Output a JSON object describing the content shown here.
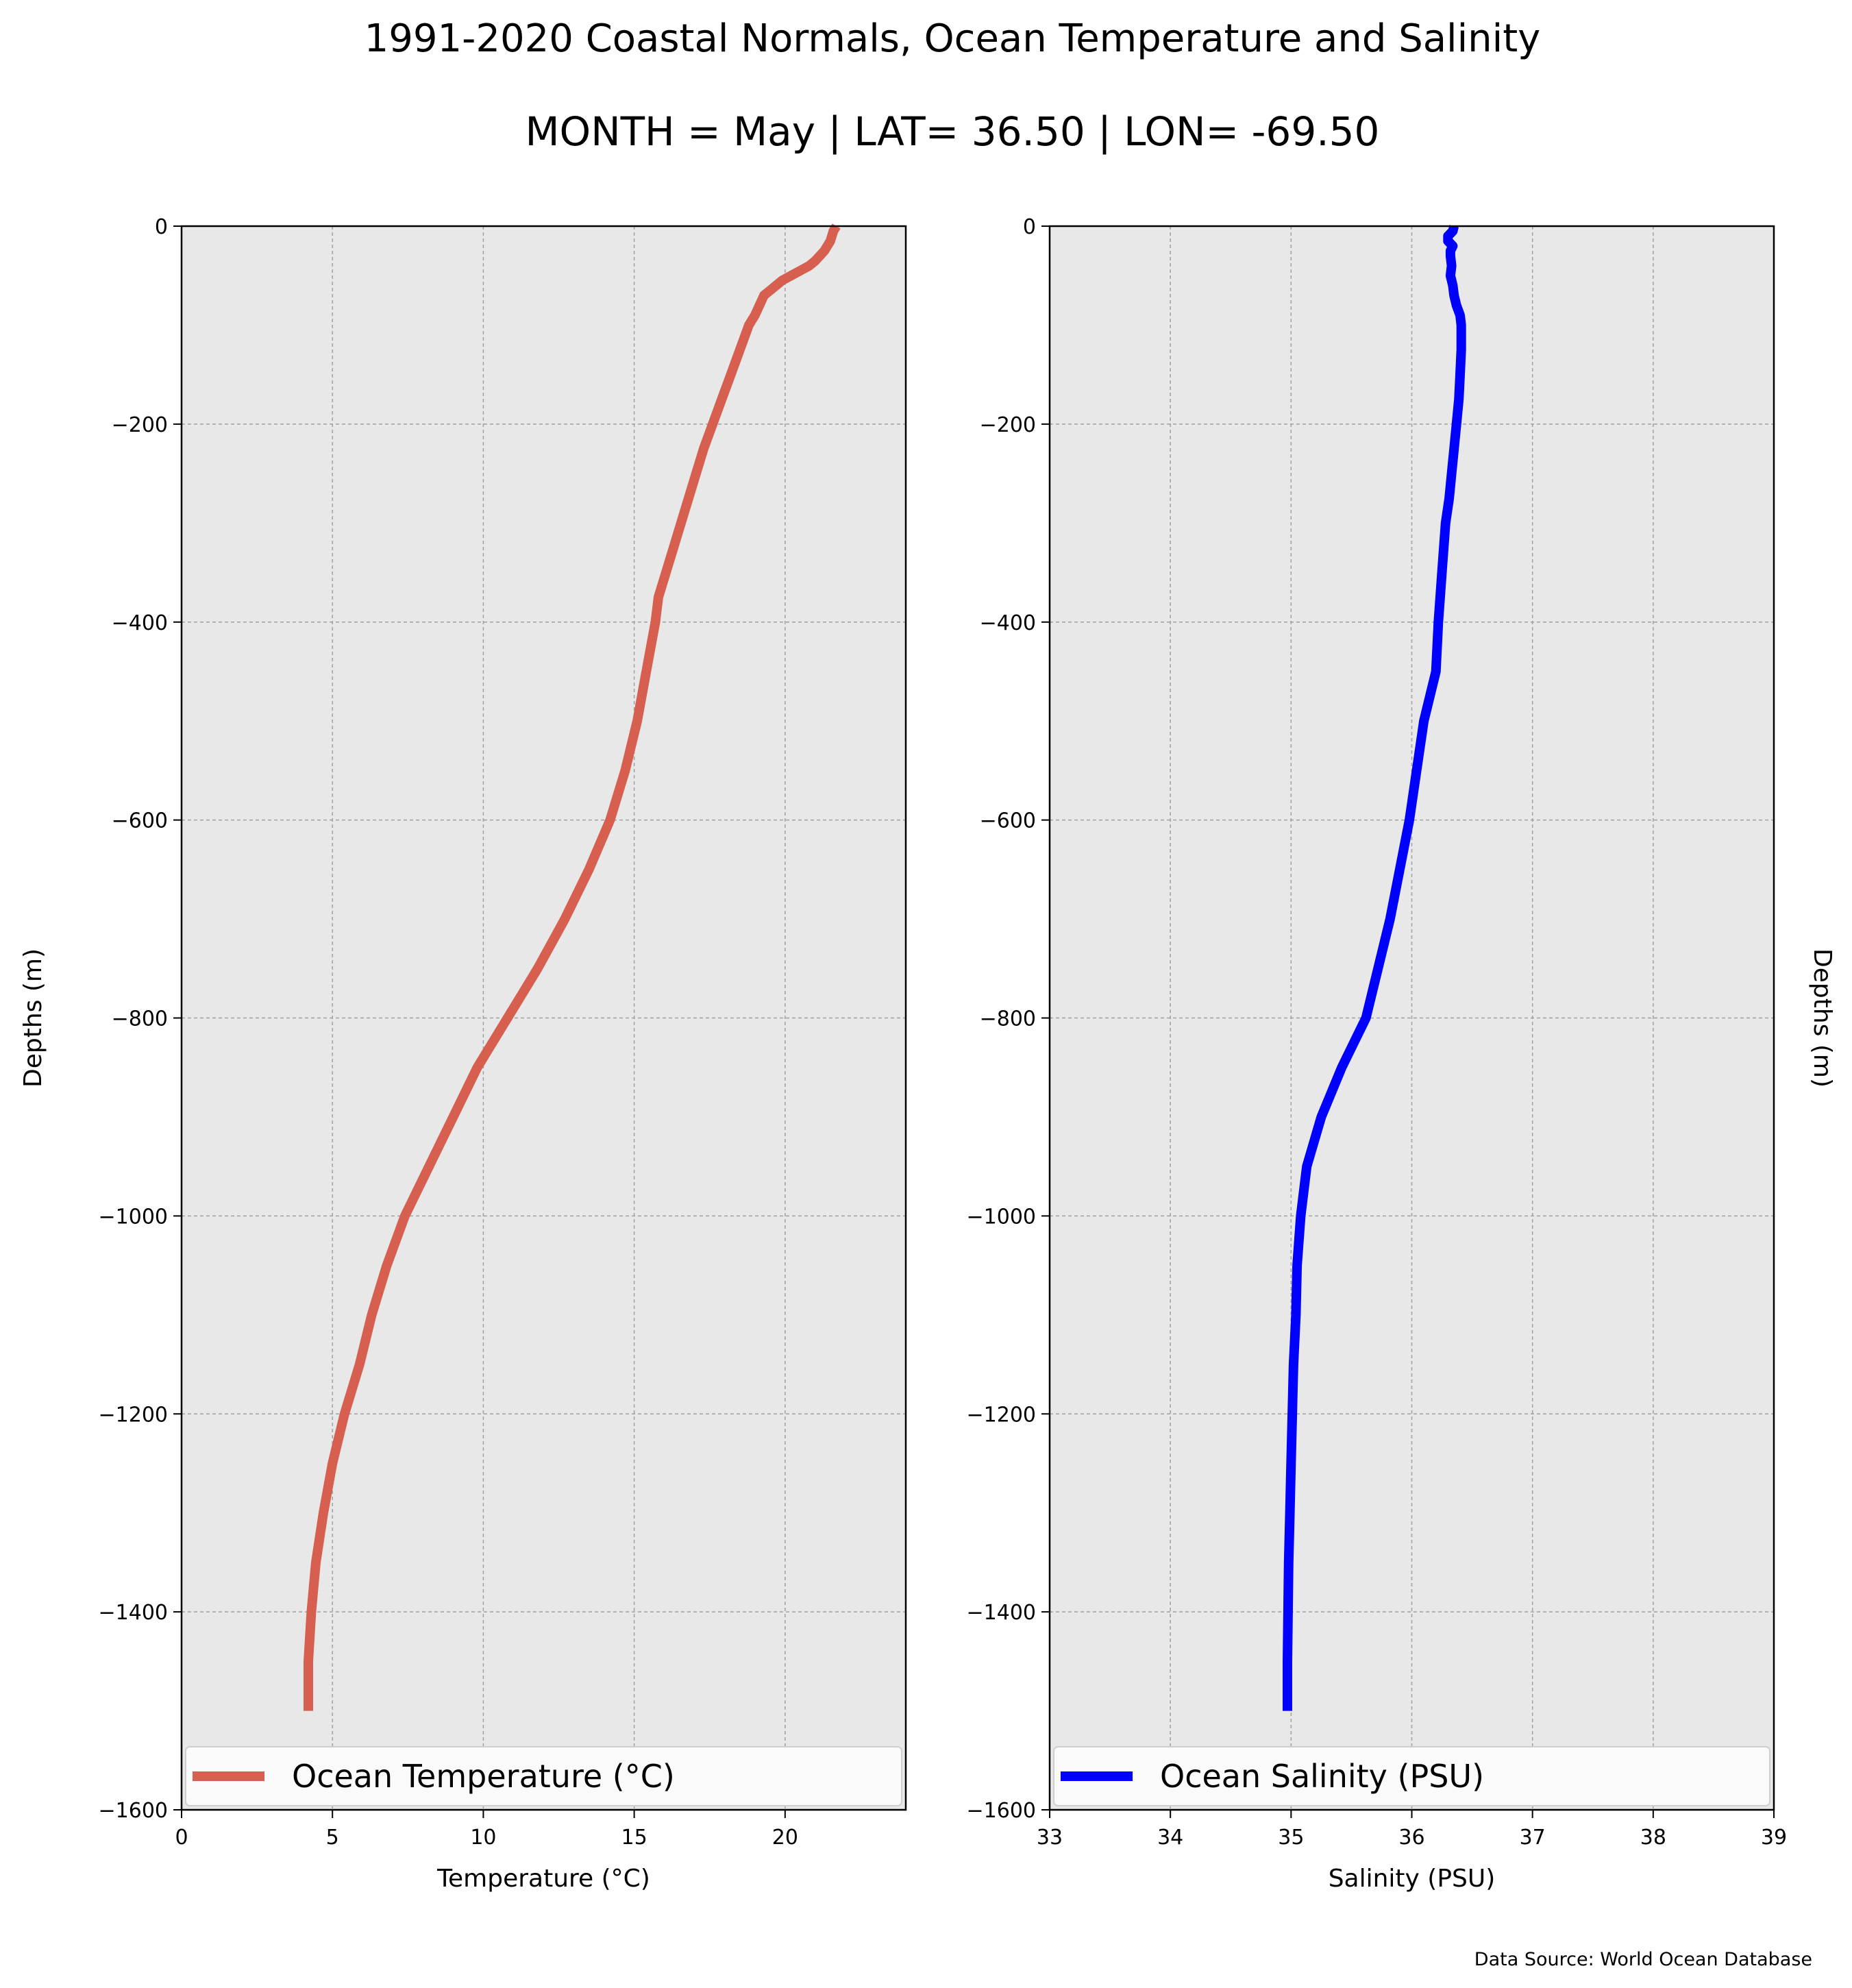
{
  "figure": {
    "title_line1": "1991-2020 Coastal Normals, Ocean Temperature and Salinity",
    "title_line2": "MONTH = May | LAT= 36.50 | LON= -69.50",
    "source": "Data Source: World Ocean Database",
    "background": "#ffffff",
    "panel_background": "#e8e8e8"
  },
  "chart_data": [
    {
      "type": "line",
      "xlabel": "Temperature ($^\\circ$C)",
      "xlabel_display": "Temperature (°C)",
      "ylabel": "Depths (m)",
      "xlim": [
        0,
        24
      ],
      "ylim": [
        -1600,
        0
      ],
      "xticks": [
        0,
        5,
        10,
        15,
        20
      ],
      "xtick_labels": [
        "0",
        "5",
        "10",
        "15",
        "20"
      ],
      "yticks": [
        0,
        -200,
        -400,
        -600,
        -800,
        -1000,
        -1200,
        -1400,
        -1600
      ],
      "ytick_labels": [
        "0",
        "−200",
        "−400",
        "−600",
        "−800",
        "−1000",
        "−1200",
        "−1400",
        "−1600"
      ],
      "grid": true,
      "legend": "lower-center",
      "series": [
        {
          "name": "Ocean Temperature (°C)",
          "color": "#d65f4f",
          "x": [
            21.7,
            21.6,
            21.55,
            21.5,
            21.3,
            21.0,
            20.8,
            20.5,
            20.2,
            19.9,
            19.7,
            19.5,
            19.3,
            19.15,
            19.0,
            18.8,
            18.5,
            18.2,
            17.9,
            17.6,
            17.3,
            17.05,
            16.8,
            16.55,
            16.3,
            16.05,
            15.8,
            15.7,
            15.4,
            15.1,
            14.7,
            14.2,
            13.5,
            12.7,
            11.8,
            10.8,
            9.8,
            9.0,
            8.2,
            7.4,
            6.8,
            6.3,
            5.9,
            5.4,
            5.0,
            4.7,
            4.45,
            4.3,
            4.2,
            4.2
          ],
          "y": [
            0,
            -5,
            -10,
            -15,
            -25,
            -35,
            -40,
            -45,
            -50,
            -55,
            -60,
            -65,
            -70,
            -80,
            -90,
            -100,
            -125,
            -150,
            -175,
            -200,
            -225,
            -250,
            -275,
            -300,
            -325,
            -350,
            -375,
            -400,
            -450,
            -500,
            -550,
            -600,
            -650,
            -700,
            -750,
            -800,
            -850,
            -900,
            -950,
            -1000,
            -1050,
            -1100,
            -1150,
            -1200,
            -1250,
            -1300,
            -1350,
            -1400,
            -1450,
            -1500
          ]
        }
      ]
    },
    {
      "type": "line",
      "xlabel": "Salinity (PSU)",
      "ylabel": "Depths (m)",
      "xlim": [
        33,
        39
      ],
      "ylim": [
        -1600,
        0
      ],
      "xticks": [
        33,
        34,
        35,
        36,
        37,
        38,
        39
      ],
      "xtick_labels": [
        "33",
        "34",
        "35",
        "36",
        "37",
        "38",
        "39"
      ],
      "yticks": [
        0,
        -200,
        -400,
        -600,
        -800,
        -1000,
        -1200,
        -1400,
        -1600
      ],
      "ytick_labels": [
        "0",
        "−200",
        "−400",
        "−600",
        "−800",
        "−1000",
        "−1200",
        "−1400",
        "−1600"
      ],
      "grid": true,
      "legend": "lower-center",
      "series": [
        {
          "name": "Ocean Salinity (PSU)",
          "color": "#0000ff",
          "x": [
            36.35,
            36.34,
            36.3,
            36.3,
            36.34,
            36.32,
            36.32,
            36.33,
            36.32,
            36.34,
            36.35,
            36.37,
            36.4,
            36.41,
            36.41,
            36.4,
            36.39,
            36.37,
            36.35,
            36.33,
            36.31,
            36.28,
            36.25,
            36.22,
            36.2,
            36.1,
            35.98,
            35.82,
            35.62,
            35.42,
            35.25,
            35.13,
            35.08,
            35.05,
            35.04,
            35.02,
            35.01,
            35.0,
            34.99,
            34.98,
            34.97,
            34.97
          ],
          "y": [
            0,
            -5,
            -10,
            -15,
            -20,
            -25,
            -30,
            -40,
            -50,
            -60,
            -70,
            -80,
            -90,
            -100,
            -125,
            -150,
            -175,
            -200,
            -225,
            -250,
            -275,
            -300,
            -350,
            -400,
            -450,
            -500,
            -600,
            -700,
            -800,
            -850,
            -900,
            -950,
            -1000,
            -1050,
            -1100,
            -1150,
            -1200,
            -1250,
            -1300,
            -1350,
            -1450,
            -1500
          ]
        }
      ]
    }
  ]
}
